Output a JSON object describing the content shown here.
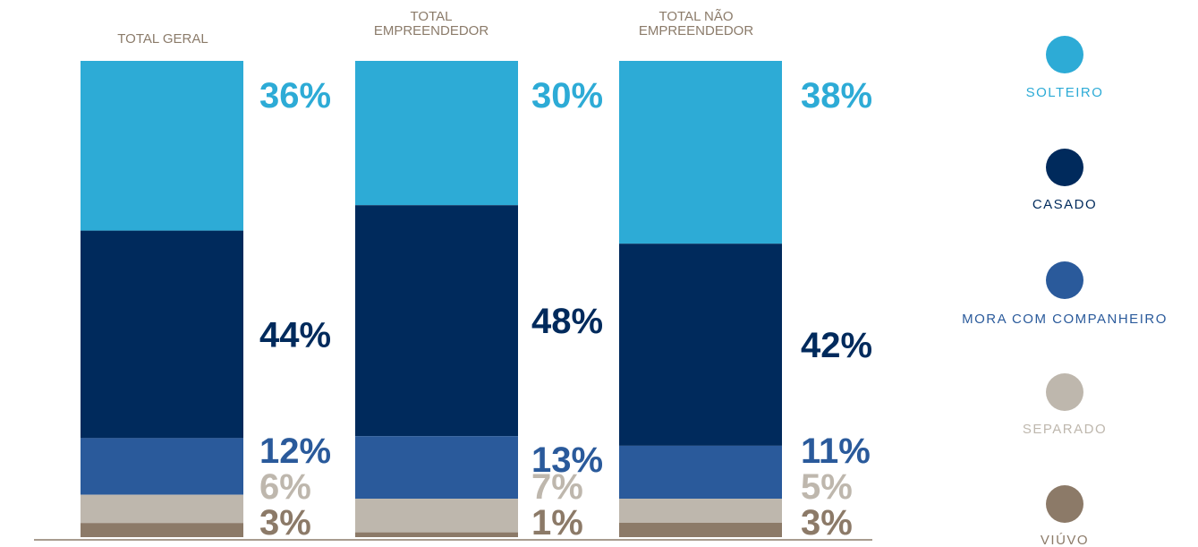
{
  "chart_data": {
    "type": "bar",
    "stacked": true,
    "percent_stacked": true,
    "categories": [
      [
        "TOTAL GERAL"
      ],
      [
        "TOTAL",
        "EMPREENDEDOR"
      ],
      [
        "TOTAL NÃO",
        "EMPREENDEDOR"
      ]
    ],
    "series": [
      {
        "name": "SOLTEIRO",
        "color": "#2dabd6",
        "values": [
          36,
          30,
          38
        ],
        "labels": [
          "36%",
          "30%",
          "38%"
        ]
      },
      {
        "name": "CASADO",
        "color": "#002a5c",
        "values": [
          44,
          48,
          42
        ],
        "labels": [
          "44%",
          "48%",
          "42%"
        ]
      },
      {
        "name": "MORA COM COMPANHEIRO",
        "color": "#2a5a9b",
        "values": [
          12,
          13,
          11
        ],
        "labels": [
          "12%",
          "13%",
          "11%"
        ]
      },
      {
        "name": "SEPARADO",
        "color": "#beb7ad",
        "values": [
          6,
          7,
          5
        ],
        "labels": [
          "6%",
          "7%",
          "5%"
        ]
      },
      {
        "name": "VIÚVO",
        "color": "#8c7a68",
        "values": [
          3,
          1,
          3
        ],
        "labels": [
          "3%",
          "1%",
          "3%"
        ]
      }
    ],
    "legend": "right",
    "grid": false,
    "category_label_color": "#8b7b6a",
    "baseline_color": "#8b7b6a"
  }
}
